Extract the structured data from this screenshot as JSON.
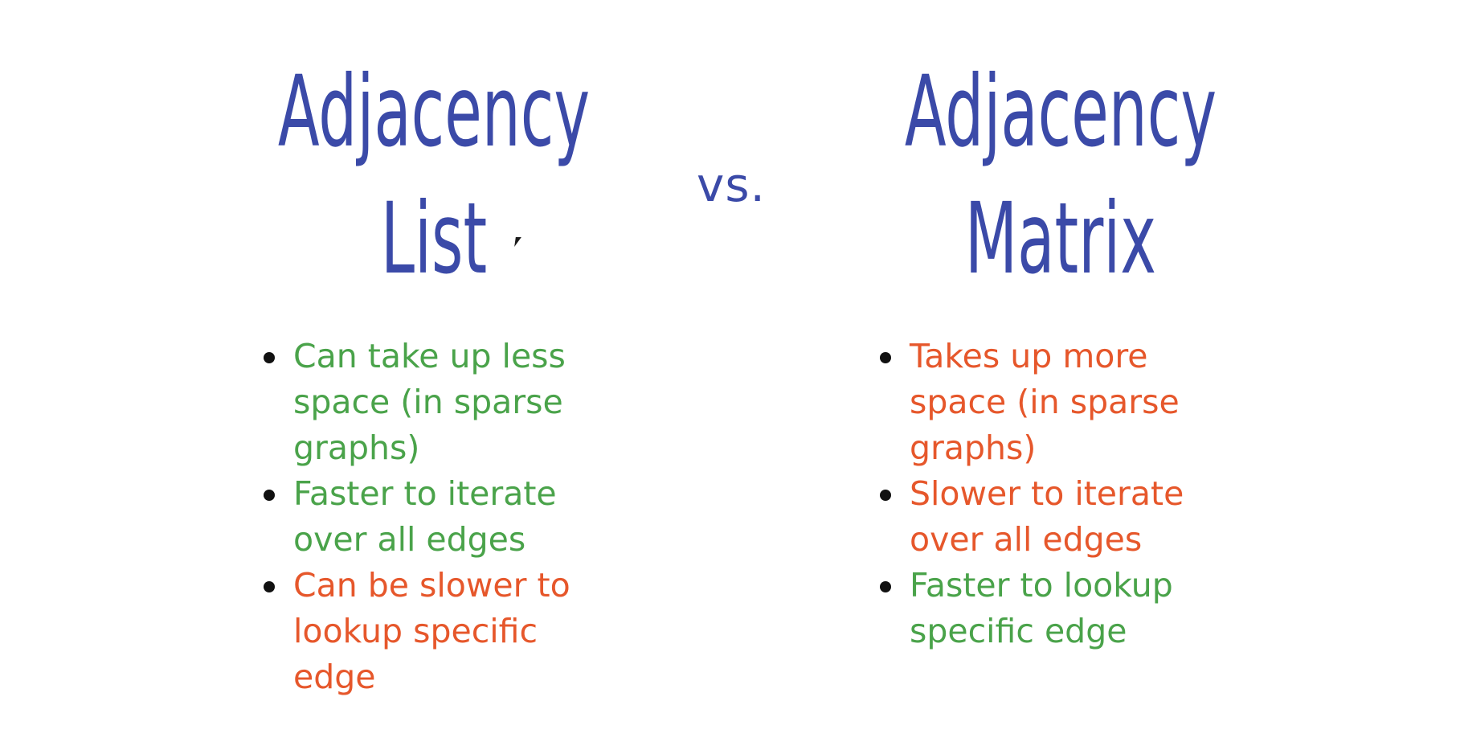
{
  "left": {
    "title_line1": "Adjacency",
    "title_line2": "List",
    "points": [
      {
        "text": "Can take up less space (in sparse graphs)",
        "tone": "good"
      },
      {
        "text": "Faster to iterate over all edges",
        "tone": "good"
      },
      {
        "text": "Can be slower to lookup specific edge",
        "tone": "bad"
      }
    ]
  },
  "separator": "vs.",
  "right": {
    "title_line1": "Adjacency",
    "title_line2": "Matrix",
    "points": [
      {
        "text": "Takes up more space (in sparse graphs)",
        "tone": "bad"
      },
      {
        "text": "Slower to iterate over all edges",
        "tone": "bad"
      },
      {
        "text": "Faster to lookup specific edge",
        "tone": "good"
      }
    ]
  },
  "colors": {
    "title": "#3b4aa8",
    "good": "#4aa34a",
    "bad": "#e6572b",
    "bullet": "#111111"
  }
}
